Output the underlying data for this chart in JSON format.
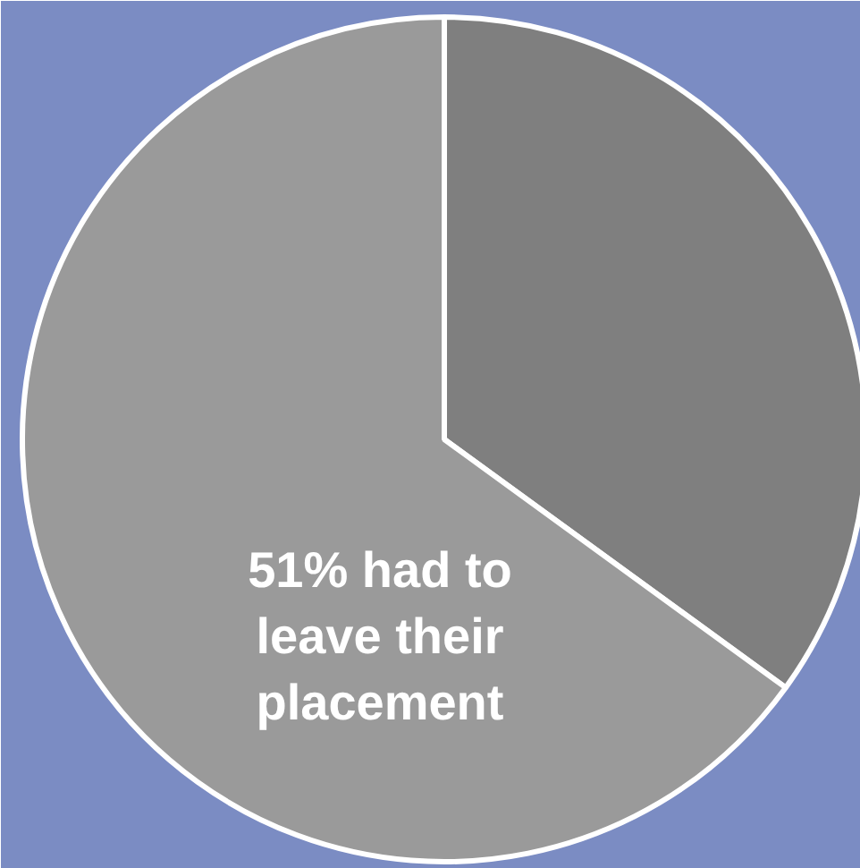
{
  "chart_data": {
    "type": "pie",
    "categories": [
      null,
      null
    ],
    "values": [
      35,
      65
    ],
    "colors": [
      "#7f7f7f",
      "#9a9a9a"
    ],
    "annotations": [
      "51% had to leave their placement"
    ]
  }
}
